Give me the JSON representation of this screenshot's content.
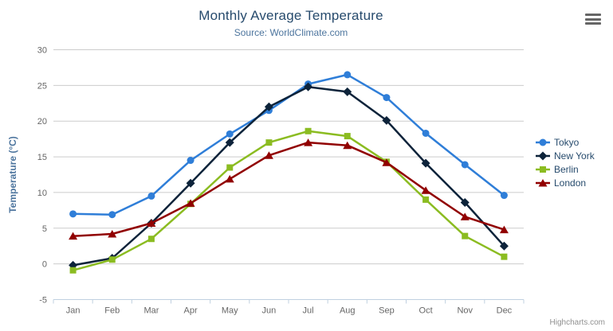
{
  "header": {
    "title": "Monthly Average Temperature",
    "subtitle": "Source: WorldClimate.com"
  },
  "menu_icon": "hamburger-export-menu-icon",
  "credits": {
    "label": "Highcharts.com"
  },
  "chart_data": {
    "type": "line",
    "title": "Monthly Average Temperature",
    "subtitle": "Source: WorldClimate.com",
    "categories": [
      "Jan",
      "Feb",
      "Mar",
      "Apr",
      "May",
      "Jun",
      "Jul",
      "Aug",
      "Sep",
      "Oct",
      "Nov",
      "Dec"
    ],
    "xlabel": "",
    "ylabel": "Temperature (°C)",
    "ylim": [
      -5,
      30
    ],
    "ytick_interval": 5,
    "ytick_labels": [
      "-5",
      "0",
      "5",
      "10",
      "15",
      "20",
      "25",
      "30"
    ],
    "grid": true,
    "legend_position": "right",
    "colors": {
      "grid_line": "#cccccc",
      "axis_line": "#c0d0e0",
      "tick_label": "#666666",
      "axis_title": "#4d759e",
      "title": "#274b6d",
      "subtitle": "#4d759e",
      "legend_text": "#274b6d"
    },
    "series": [
      {
        "name": "Tokyo",
        "color": "#2f7ed8",
        "marker": "circle",
        "values": [
          7.0,
          6.9,
          9.5,
          14.5,
          18.2,
          21.5,
          25.2,
          26.5,
          23.3,
          18.3,
          13.9,
          9.6
        ]
      },
      {
        "name": "New York",
        "color": "#0d233a",
        "marker": "diamond",
        "values": [
          -0.2,
          0.8,
          5.7,
          11.3,
          17.0,
          22.0,
          24.8,
          24.1,
          20.1,
          14.1,
          8.6,
          2.5
        ]
      },
      {
        "name": "Berlin",
        "color": "#8bbc21",
        "marker": "square",
        "values": [
          -0.9,
          0.6,
          3.5,
          8.4,
          13.5,
          17.0,
          18.6,
          17.9,
          14.3,
          9.0,
          3.9,
          1.0
        ]
      },
      {
        "name": "London",
        "color": "#910000",
        "marker": "triangle",
        "values": [
          3.9,
          4.2,
          5.7,
          8.5,
          11.9,
          15.2,
          17.0,
          16.6,
          14.2,
          10.3,
          6.6,
          4.8
        ]
      }
    ]
  }
}
